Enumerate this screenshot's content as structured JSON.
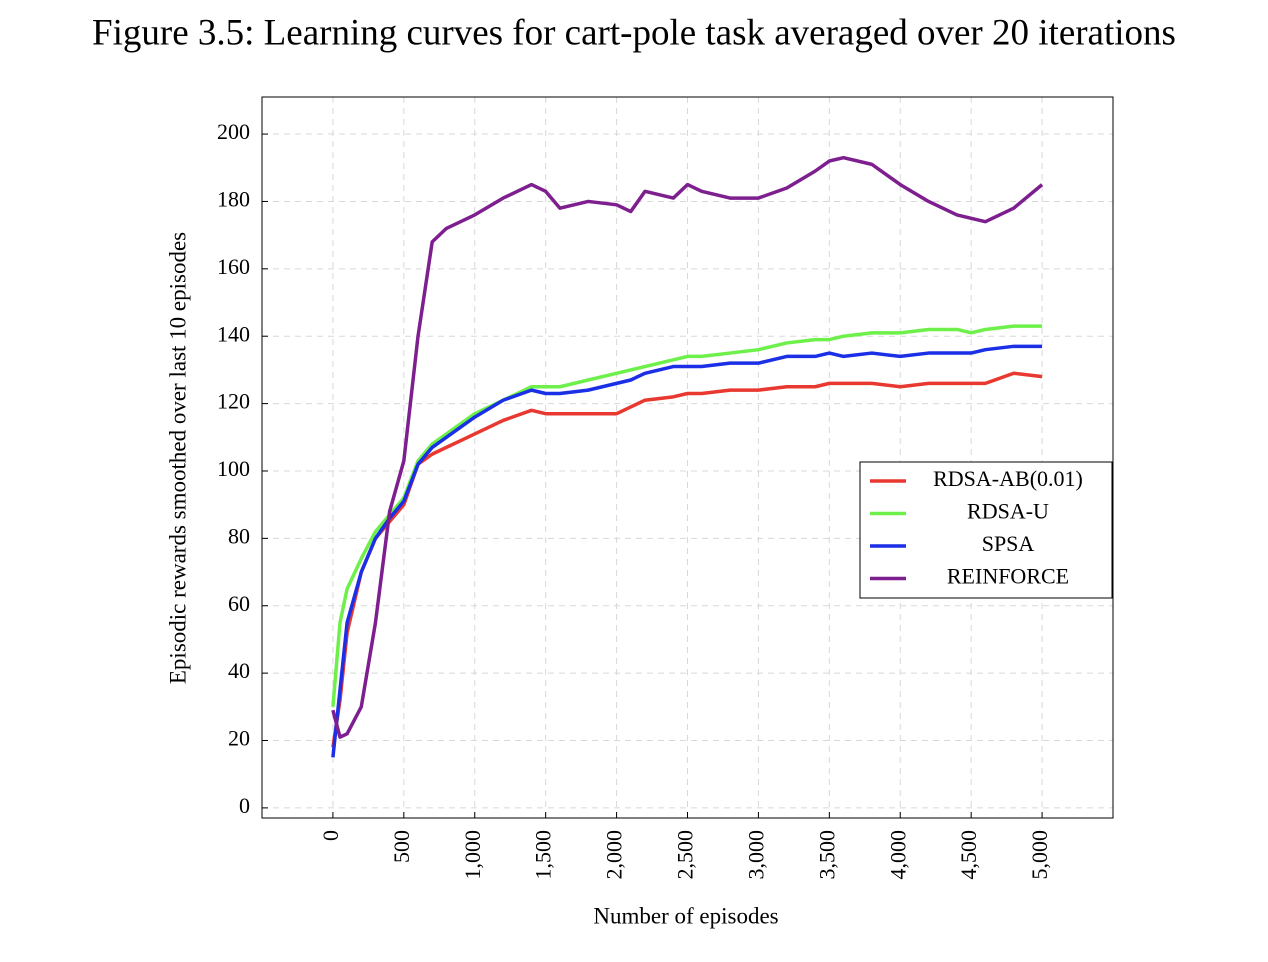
{
  "chart_data": {
    "type": "line",
    "title": "Figure 3.5: Learning curves for cart-pole task averaged over 20 iterations",
    "x_label": "Number of episodes",
    "y_label": "Episodic rewards smoothed over last 10 episodes",
    "x": [
      0,
      50,
      100,
      200,
      300,
      400,
      500,
      600,
      700,
      800,
      900,
      1000,
      1200,
      1400,
      1500,
      1600,
      1800,
      2000,
      2100,
      2200,
      2400,
      2500,
      2600,
      2800,
      3000,
      3200,
      3400,
      3500,
      3600,
      3800,
      4000,
      4200,
      4400,
      4500,
      4600,
      4800,
      5000
    ],
    "series": [
      {
        "name": "RDSA-AB(0.01)",
        "color": "#e8382f",
        "values": [
          18,
          32,
          52,
          70,
          80,
          85,
          90,
          102,
          105,
          107,
          109,
          111,
          115,
          118,
          117,
          117,
          117,
          117,
          119,
          121,
          122,
          123,
          123,
          124,
          124,
          125,
          125,
          126,
          126,
          126,
          125,
          126,
          126,
          126,
          126,
          129,
          128
        ]
      },
      {
        "name": "RDSA-U",
        "color": "#6ef04a",
        "values": [
          30,
          55,
          65,
          74,
          82,
          87,
          92,
          103,
          108,
          111,
          114,
          117,
          121,
          125,
          125,
          125,
          127,
          129,
          130,
          131,
          133,
          134,
          134,
          135,
          136,
          138,
          139,
          139,
          140,
          141,
          141,
          142,
          142,
          141,
          142,
          143,
          143
        ]
      },
      {
        "name": "SPSA",
        "color": "#1a2fe6",
        "values": [
          15,
          35,
          55,
          70,
          80,
          86,
          91,
          102,
          107,
          110,
          113,
          116,
          121,
          124,
          123,
          123,
          124,
          126,
          127,
          129,
          131,
          131,
          131,
          132,
          132,
          134,
          134,
          135,
          134,
          135,
          134,
          135,
          135,
          135,
          136,
          137,
          137
        ]
      },
      {
        "name": "REINFORCE",
        "color": "#7d1f8e",
        "values": [
          29,
          21,
          22,
          30,
          55,
          88,
          103,
          140,
          168,
          172,
          174,
          176,
          181,
          185,
          183,
          178,
          180,
          179,
          177,
          183,
          181,
          185,
          183,
          181,
          181,
          184,
          189,
          192,
          193,
          191,
          185,
          180,
          176,
          175,
          174,
          178,
          185
        ]
      }
    ],
    "xlim": [
      -500,
      5500
    ],
    "ylim": [
      -3,
      211
    ],
    "xticks": [
      0,
      500,
      {
        "value": 1000,
        "label": "1,000"
      },
      {
        "value": 1500,
        "label": "1,500"
      },
      {
        "value": 2000,
        "label": "2,000"
      },
      {
        "value": 2500,
        "label": "2,500"
      },
      {
        "value": 3000,
        "label": "3,000"
      },
      {
        "value": 3500,
        "label": "3,500"
      },
      {
        "value": 4000,
        "label": "4,000"
      },
      {
        "value": 4500,
        "label": "4,500"
      },
      {
        "value": 5000,
        "label": "5,000"
      }
    ],
    "yticks": [
      0,
      20,
      40,
      60,
      80,
      100,
      120,
      140,
      160,
      180,
      200
    ],
    "grid": true,
    "legend": "right"
  }
}
